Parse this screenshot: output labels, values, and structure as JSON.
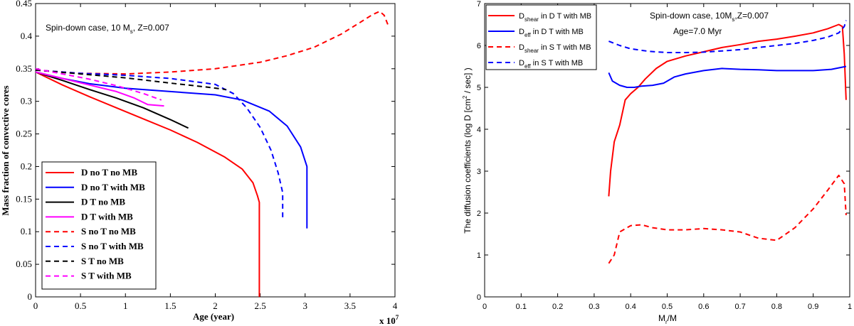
{
  "chart_data": [
    {
      "type": "line",
      "annotation": "Spin-down case, 10 M",
      "annotation_sub": "s",
      "annotation_suffix": ", Z=0.007",
      "xlabel": "Age (year)",
      "ylabel": "Mass fraction of convective cores",
      "x_multiplier_label": "x 10",
      "x_multiplier_exp": "7",
      "xlim": [
        0,
        4
      ],
      "ylim": [
        0,
        0.45
      ],
      "xticks": [
        "0",
        "0.5",
        "1",
        "1.5",
        "2",
        "2.5",
        "3",
        "3.5",
        "4"
      ],
      "yticks": [
        "0",
        "0.05",
        "0.1",
        "0.15",
        "0.2",
        "0.25",
        "0.3",
        "0.35",
        "0.4",
        "0.45"
      ],
      "legend_position": "bottom-left",
      "series": [
        {
          "name": "D no T no MB",
          "color": "#ff0000",
          "dash": "solid",
          "x": [
            0,
            0.3,
            0.6,
            0.9,
            1.2,
            1.5,
            1.8,
            2.1,
            2.3,
            2.42,
            2.47,
            2.49,
            2.49
          ],
          "y": [
            0.345,
            0.325,
            0.307,
            0.29,
            0.273,
            0.256,
            0.237,
            0.215,
            0.196,
            0.175,
            0.155,
            0.145,
            0
          ]
        },
        {
          "name": "D no T with MB",
          "color": "#0000ff",
          "dash": "solid",
          "x": [
            0,
            0.3,
            0.6,
            1.0,
            1.5,
            2.0,
            2.3,
            2.6,
            2.8,
            2.95,
            3.02,
            3.02
          ],
          "y": [
            0.345,
            0.335,
            0.327,
            0.32,
            0.315,
            0.31,
            0.302,
            0.285,
            0.262,
            0.23,
            0.2,
            0.105
          ]
        },
        {
          "name": "D  T no MB",
          "color": "#000000",
          "dash": "solid",
          "x": [
            0,
            0.3,
            0.6,
            0.9,
            1.2,
            1.5,
            1.7
          ],
          "y": [
            0.345,
            0.332,
            0.318,
            0.305,
            0.29,
            0.272,
            0.259
          ]
        },
        {
          "name": "D  T with MB",
          "color": "#ff00ff",
          "dash": "solid",
          "x": [
            0,
            0.3,
            0.6,
            0.9,
            1.1,
            1.25,
            1.43
          ],
          "y": [
            0.345,
            0.335,
            0.325,
            0.315,
            0.305,
            0.295,
            0.293
          ]
        },
        {
          "name": "S no T no MB",
          "color": "#ff0000",
          "dash": "dashed",
          "x": [
            0,
            0.5,
            1.0,
            1.5,
            2.0,
            2.5,
            2.8,
            3.1,
            3.4,
            3.6,
            3.75,
            3.83,
            3.88,
            3.92
          ],
          "y": [
            0.348,
            0.343,
            0.342,
            0.345,
            0.35,
            0.36,
            0.37,
            0.383,
            0.403,
            0.42,
            0.433,
            0.438,
            0.432,
            0.418
          ]
        },
        {
          "name": "S no T with MB",
          "color": "#0000ff",
          "dash": "dashed",
          "x": [
            0,
            0.5,
            1.0,
            1.5,
            2.0,
            2.2,
            2.35,
            2.5,
            2.62,
            2.7,
            2.75,
            2.75
          ],
          "y": [
            0.348,
            0.343,
            0.34,
            0.335,
            0.326,
            0.312,
            0.29,
            0.26,
            0.225,
            0.19,
            0.16,
            0.12
          ]
        },
        {
          "name": "S  T no MB",
          "color": "#000000",
          "dash": "dashed",
          "x": [
            0,
            0.5,
            1.0,
            1.5,
            1.9,
            2.12
          ],
          "y": [
            0.348,
            0.342,
            0.336,
            0.328,
            0.322,
            0.318
          ]
        },
        {
          "name": "S  T with MB",
          "color": "#ff00ff",
          "dash": "dashed",
          "x": [
            0,
            0.3,
            0.6,
            0.9,
            1.2,
            1.4
          ],
          "y": [
            0.35,
            0.342,
            0.334,
            0.324,
            0.312,
            0.302
          ]
        }
      ]
    },
    {
      "type": "line",
      "annotation": "Spin-down case, 10M",
      "annotation_sub": "s",
      "annotation_suffix": ",Z=0.007",
      "annotation2": "Age=7.0 Myr",
      "xlabel": "M",
      "xlabel_sub": "r",
      "xlabel_suffix": "/M",
      "ylabel": "The diffusion coefficients (log D [cm",
      "ylabel_sup": "2",
      "ylabel_suffix": " / sec] )",
      "xlim": [
        0,
        1
      ],
      "ylim": [
        0,
        7
      ],
      "xticks": [
        "0",
        "0.1",
        "0.2",
        "0.3",
        "0.4",
        "0.5",
        "0.6",
        "0.7",
        "0.8",
        "0.9",
        "1"
      ],
      "yticks": [
        "0",
        "1",
        "2",
        "3",
        "4",
        "5",
        "6",
        "7"
      ],
      "legend_position": "top-left",
      "series": [
        {
          "name": "D",
          "name_sub": "shear",
          "name_suffix": " in D T with MB",
          "color": "#ff0000",
          "dash": "solid",
          "x": [
            0.34,
            0.345,
            0.355,
            0.37,
            0.385,
            0.4,
            0.42,
            0.44,
            0.47,
            0.5,
            0.55,
            0.6,
            0.65,
            0.7,
            0.75,
            0.8,
            0.85,
            0.9,
            0.94,
            0.97,
            0.98,
            0.985,
            0.99
          ],
          "y": [
            2.4,
            3.0,
            3.7,
            4.1,
            4.7,
            4.85,
            5.0,
            5.2,
            5.45,
            5.62,
            5.75,
            5.85,
            5.95,
            6.02,
            6.1,
            6.15,
            6.22,
            6.3,
            6.4,
            6.5,
            6.45,
            5.8,
            4.7
          ]
        },
        {
          "name": "D",
          "name_sub": "eff",
          "name_suffix": " in D T with MB",
          "color": "#0000ff",
          "dash": "solid",
          "x": [
            0.34,
            0.35,
            0.37,
            0.39,
            0.41,
            0.43,
            0.46,
            0.49,
            0.52,
            0.55,
            0.6,
            0.65,
            0.7,
            0.75,
            0.8,
            0.85,
            0.9,
            0.95,
            0.99
          ],
          "y": [
            5.35,
            5.15,
            5.05,
            5.0,
            5.0,
            5.03,
            5.05,
            5.1,
            5.25,
            5.32,
            5.4,
            5.45,
            5.43,
            5.42,
            5.4,
            5.4,
            5.4,
            5.43,
            5.5
          ]
        },
        {
          "name": "D",
          "name_sub": "shear",
          "name_suffix": " in S T with MB",
          "color": "#ff0000",
          "dash": "dashed",
          "x": [
            0.34,
            0.355,
            0.37,
            0.4,
            0.43,
            0.46,
            0.5,
            0.55,
            0.6,
            0.65,
            0.7,
            0.75,
            0.8,
            0.85,
            0.9,
            0.94,
            0.97,
            0.985,
            0.99
          ],
          "y": [
            0.8,
            1.0,
            1.55,
            1.7,
            1.72,
            1.65,
            1.6,
            1.6,
            1.63,
            1.6,
            1.55,
            1.4,
            1.35,
            1.65,
            2.1,
            2.55,
            2.9,
            2.7,
            1.95
          ]
        },
        {
          "name": "D",
          "name_sub": "eff",
          "name_suffix": " in S T with MB",
          "color": "#0000ff",
          "dash": "dashed",
          "x": [
            0.34,
            0.37,
            0.4,
            0.45,
            0.5,
            0.55,
            0.6,
            0.65,
            0.7,
            0.75,
            0.8,
            0.85,
            0.9,
            0.94,
            0.97,
            0.985,
            0.99
          ],
          "y": [
            6.1,
            6.0,
            5.92,
            5.86,
            5.83,
            5.83,
            5.84,
            5.87,
            5.9,
            5.95,
            6.0,
            6.05,
            6.12,
            6.2,
            6.3,
            6.45,
            6.6
          ]
        }
      ]
    }
  ]
}
